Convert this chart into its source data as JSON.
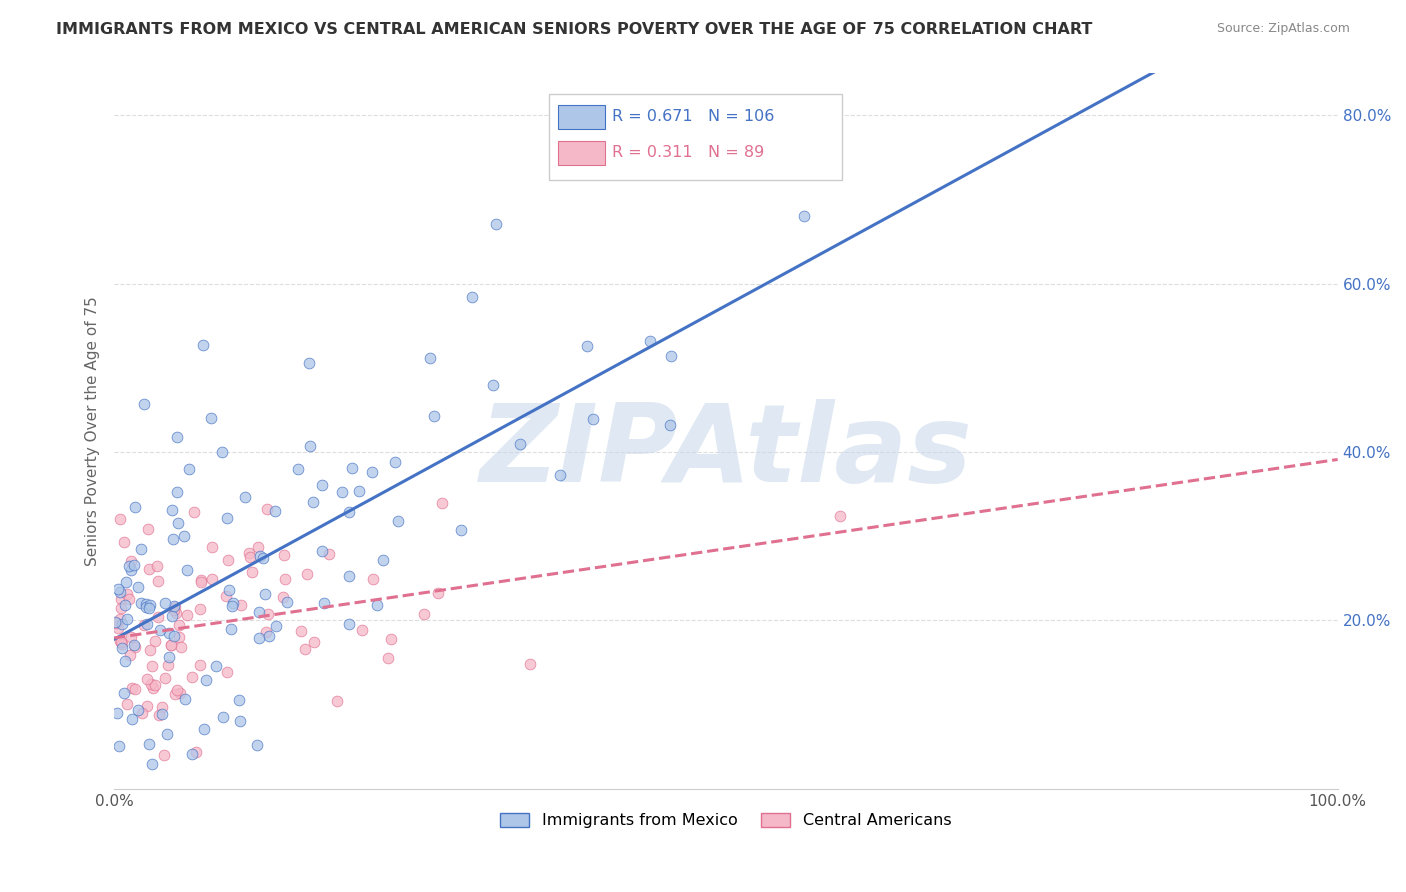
{
  "title": "IMMIGRANTS FROM MEXICO VS CENTRAL AMERICAN SENIORS POVERTY OVER THE AGE OF 75 CORRELATION CHART",
  "source": "Source: ZipAtlas.com",
  "ylabel": "Seniors Poverty Over the Age of 75",
  "series1_label": "Immigrants from Mexico",
  "series2_label": "Central Americans",
  "series1_R": 0.671,
  "series1_N": 106,
  "series2_R": 0.311,
  "series2_N": 89,
  "series1_color": "#aec6e8",
  "series2_color": "#f5b8c8",
  "series1_line_color": "#4472c4",
  "series2_line_color": "#e07090",
  "series2_edge_color": "#e07090",
  "xlim": [
    0.0,
    1.0
  ],
  "ylim": [
    0.0,
    0.85
  ],
  "ytick_positions": [
    0.0,
    0.2,
    0.4,
    0.6,
    0.8
  ],
  "ytick_labels_right": [
    "",
    "20.0%",
    "40.0%",
    "60.0%",
    "80.0%"
  ],
  "watermark": "ZIPAtlas",
  "watermark_color": "#c8d8ea",
  "background_color": "#ffffff",
  "grid_color": "#dddddd",
  "title_color": "#333333",
  "axis_label_color": "#666666",
  "tick_label_color": "#555555",
  "seed1": 42,
  "seed2": 77
}
